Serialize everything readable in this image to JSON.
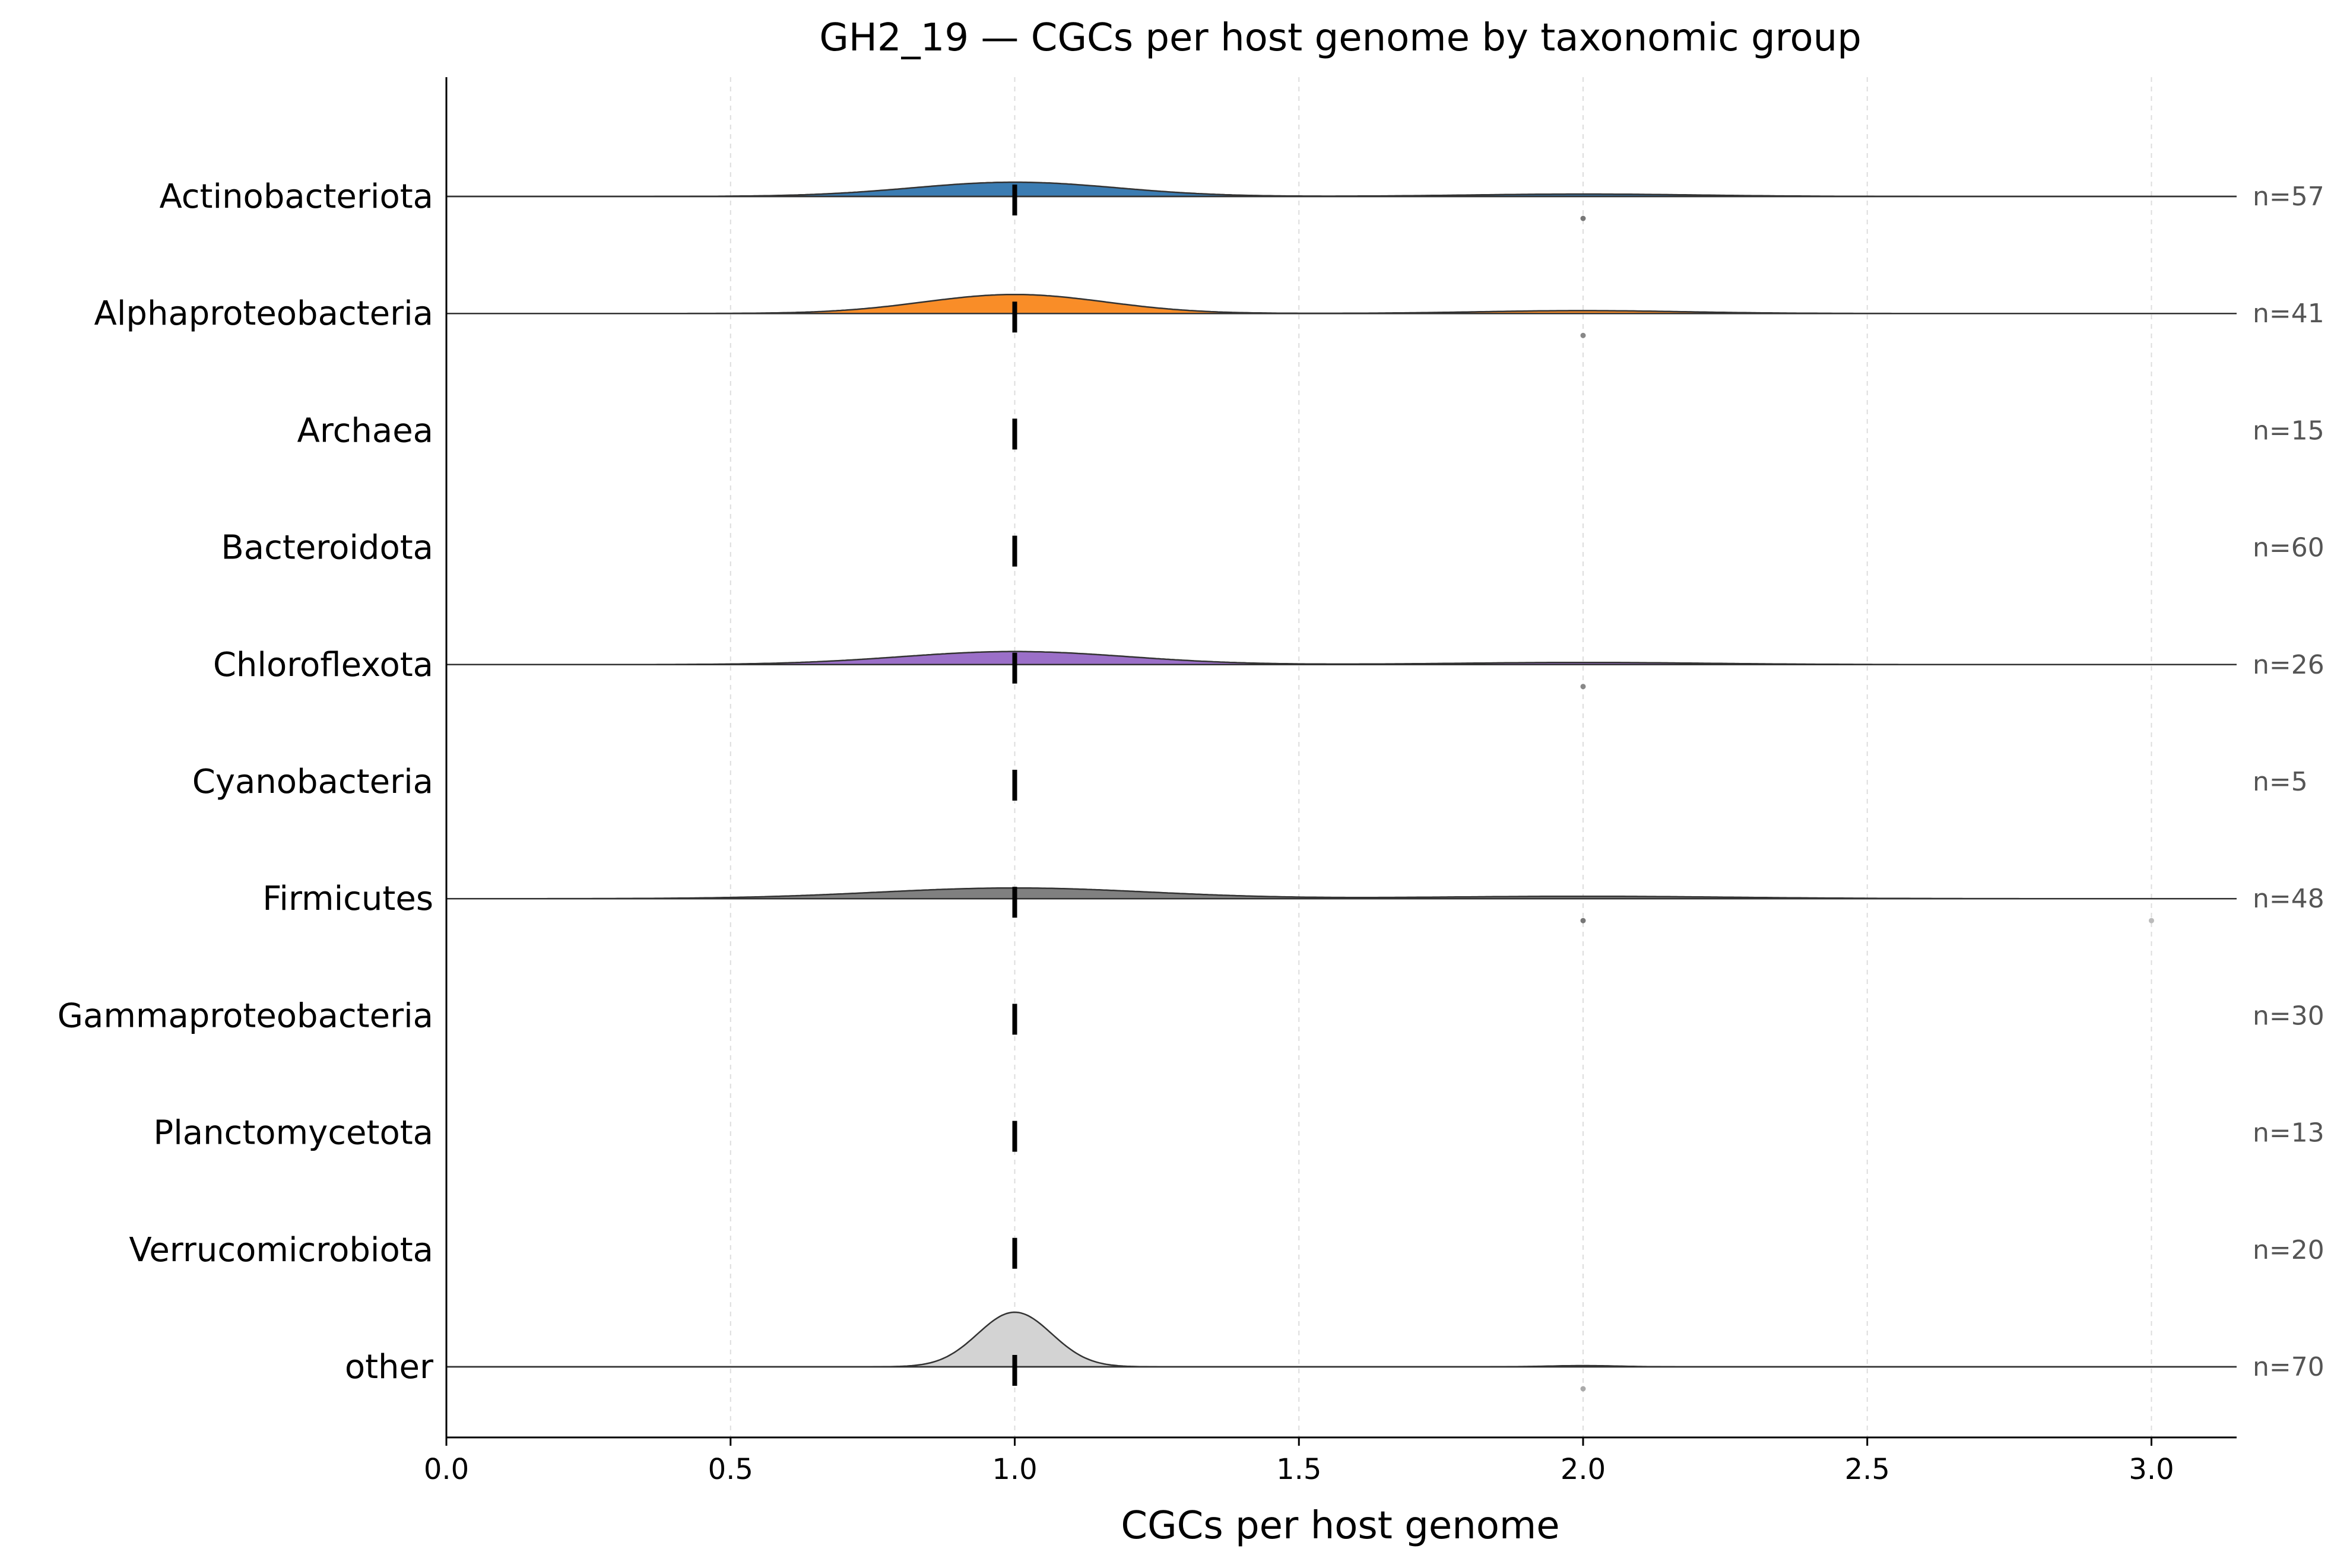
{
  "chart_data": {
    "type": "ridgeline",
    "title": "GH2_19 — CGCs per host genome by taxonomic group",
    "xlabel": "CGCs per host genome",
    "ylabel": "",
    "xlim": [
      0.0,
      3.15
    ],
    "xticks": [
      0.0,
      0.5,
      1.0,
      1.5,
      2.0,
      2.5,
      3.0
    ],
    "xtick_labels": [
      "0.0",
      "0.5",
      "1.0",
      "1.5",
      "2.0",
      "2.5",
      "3.0"
    ],
    "grid": "vertical dashed",
    "groups": [
      {
        "name": "Actinobacteriota",
        "n_label": "n=57",
        "color": "#3b7cb2",
        "median": 1.0,
        "density": {
          "peaks": [
            {
              "x": 1.0,
              "h": 0.6,
              "w": 0.18
            },
            {
              "x": 2.0,
              "h": 0.1,
              "w": 0.2
            }
          ]
        },
        "outliers": [
          {
            "x": 2.0,
            "shade": "#777777"
          }
        ]
      },
      {
        "name": "Alphaproteobacteria",
        "n_label": "n=41",
        "color": "#f98d28",
        "median": 1.0,
        "density": {
          "peaks": [
            {
              "x": 1.0,
              "h": 0.8,
              "w": 0.16
            },
            {
              "x": 2.0,
              "h": 0.12,
              "w": 0.18
            }
          ]
        },
        "outliers": [
          {
            "x": 2.0,
            "shade": "#888888"
          }
        ]
      },
      {
        "name": "Archaea",
        "n_label": "n=15",
        "color": "#2ca02c",
        "median": 1.0,
        "density": null,
        "outliers": []
      },
      {
        "name": "Bacteroidota",
        "n_label": "n=60",
        "color": "#d62728",
        "median": 1.0,
        "density": null,
        "outliers": []
      },
      {
        "name": "Chloroflexota",
        "n_label": "n=26",
        "color": "#9b6fc8",
        "median": 1.0,
        "density": {
          "peaks": [
            {
              "x": 1.0,
              "h": 0.55,
              "w": 0.2
            },
            {
              "x": 2.0,
              "h": 0.09,
              "w": 0.22
            }
          ]
        },
        "outliers": [
          {
            "x": 2.0,
            "shade": "#888888"
          }
        ]
      },
      {
        "name": "Cyanobacteria",
        "n_label": "n=5",
        "color": "#8c564b",
        "median": 1.0,
        "density": null,
        "outliers": []
      },
      {
        "name": "Firmicutes",
        "n_label": "n=48",
        "color": "#808080",
        "median": 1.0,
        "density": {
          "peaks": [
            {
              "x": 1.0,
              "h": 0.45,
              "w": 0.24
            },
            {
              "x": 2.0,
              "h": 0.1,
              "w": 0.26
            }
          ]
        },
        "outliers": [
          {
            "x": 2.0,
            "shade": "#777777"
          },
          {
            "x": 3.0,
            "shade": "#bbbbbb"
          }
        ]
      },
      {
        "name": "Gammaproteobacteria",
        "n_label": "n=30",
        "color": "#bcbd22",
        "median": 1.0,
        "density": null,
        "outliers": []
      },
      {
        "name": "Planctomycetota",
        "n_label": "n=13",
        "color": "#17becf",
        "median": 1.0,
        "density": null,
        "outliers": []
      },
      {
        "name": "Verrucomicrobiota",
        "n_label": "n=20",
        "color": "#e377c2",
        "median": 1.0,
        "density": null,
        "outliers": []
      },
      {
        "name": "other",
        "n_label": "n=70",
        "color": "#d3d3d3",
        "median": 1.0,
        "density": {
          "peaks": [
            {
              "x": 1.0,
              "h": 2.3,
              "w": 0.065
            },
            {
              "x": 2.0,
              "h": 0.05,
              "w": 0.06
            }
          ]
        },
        "outliers": [
          {
            "x": 2.0,
            "shade": "#aaaaaa"
          }
        ]
      }
    ]
  }
}
